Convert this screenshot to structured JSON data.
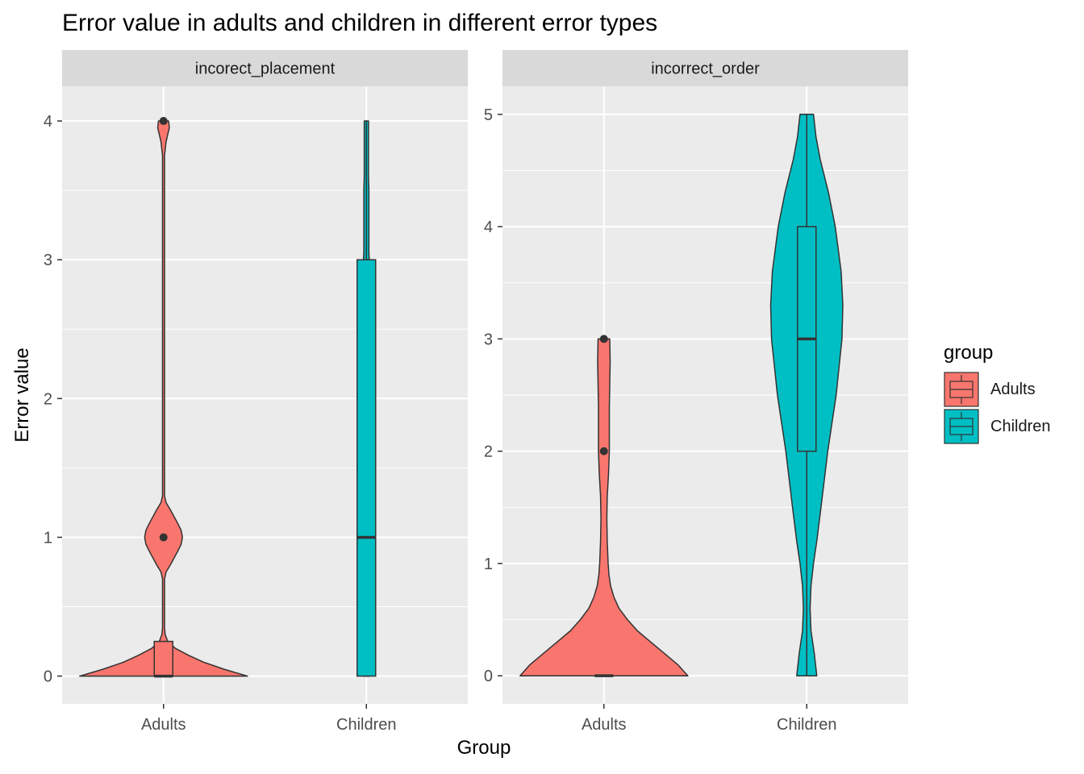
{
  "title": "Error value in adults and children in different error types",
  "chart_data": {
    "type": "violin",
    "title": "Error value in adults and children in different error types",
    "xlabel": "Group",
    "ylabel": "Error value",
    "legend": {
      "title": "group",
      "position": "right",
      "entries": [
        "Adults",
        "Children"
      ]
    },
    "colors": {
      "Adults": "#F8766D",
      "Children": "#00BFC4"
    },
    "grid": true,
    "panels": [
      {
        "strip": "incorect_placement",
        "categories": [
          "Adults",
          "Children"
        ],
        "ylim": [
          -0.2,
          4.25
        ],
        "yticks": [
          0,
          1,
          2,
          3,
          4
        ],
        "violins": [
          {
            "group": "Adults",
            "density": [
              [
                0,
                1.0
              ],
              [
                0.05,
                0.72
              ],
              [
                0.1,
                0.48
              ],
              [
                0.15,
                0.3
              ],
              [
                0.2,
                0.14
              ],
              [
                0.25,
                0.05
              ],
              [
                0.3,
                0.02
              ],
              [
                0.35,
                0.012
              ],
              [
                0.7,
                0.012
              ],
              [
                0.75,
                0.03
              ],
              [
                0.8,
                0.08
              ],
              [
                0.9,
                0.17
              ],
              [
                0.95,
                0.21
              ],
              [
                1.0,
                0.225
              ],
              [
                1.05,
                0.21
              ],
              [
                1.1,
                0.17
              ],
              [
                1.2,
                0.08
              ],
              [
                1.25,
                0.03
              ],
              [
                1.3,
                0.012
              ],
              [
                3.75,
                0.012
              ],
              [
                3.85,
                0.03
              ],
              [
                3.9,
                0.05
              ],
              [
                3.95,
                0.07
              ],
              [
                4.0,
                0.06
              ]
            ],
            "box": {
              "min": 0,
              "q1": 0,
              "median": 0,
              "q3": 0.25,
              "max": 0.25
            },
            "outliers": [
              1,
              4
            ]
          },
          {
            "group": "Children",
            "density": [
              [
                0,
                0.035
              ],
              [
                3.0,
                0.035
              ],
              [
                3.05,
                0.03
              ],
              [
                3.5,
                0.03
              ],
              [
                3.6,
                0.025
              ],
              [
                4.0,
                0.025
              ]
            ],
            "box": {
              "min": 0,
              "q1": 0,
              "median": 1,
              "q3": 3,
              "max": 4
            },
            "outliers": []
          }
        ]
      },
      {
        "strip": "incorrect_order",
        "categories": [
          "Adults",
          "Children"
        ],
        "ylim": [
          -0.25,
          5.25
        ],
        "yticks": [
          0,
          1,
          2,
          3,
          4,
          5
        ],
        "violins": [
          {
            "group": "Adults",
            "density": [
              [
                0,
                1.0
              ],
              [
                0.1,
                0.88
              ],
              [
                0.2,
                0.72
              ],
              [
                0.3,
                0.56
              ],
              [
                0.4,
                0.4
              ],
              [
                0.5,
                0.28
              ],
              [
                0.6,
                0.18
              ],
              [
                0.7,
                0.12
              ],
              [
                0.8,
                0.08
              ],
              [
                0.9,
                0.06
              ],
              [
                1.0,
                0.05
              ],
              [
                1.2,
                0.04
              ],
              [
                1.4,
                0.035
              ],
              [
                1.6,
                0.04
              ],
              [
                1.8,
                0.055
              ],
              [
                2.0,
                0.065
              ],
              [
                2.2,
                0.065
              ],
              [
                2.4,
                0.065
              ],
              [
                2.6,
                0.07
              ],
              [
                2.8,
                0.075
              ],
              [
                3.0,
                0.07
              ]
            ],
            "box": {
              "min": 0,
              "q1": 0,
              "median": 0,
              "q3": 0,
              "max": 0
            },
            "outliers": [
              2,
              3
            ]
          },
          {
            "group": "Children",
            "density": [
              [
                0,
                0.12
              ],
              [
                0.2,
                0.09
              ],
              [
                0.4,
                0.05
              ],
              [
                0.6,
                0.04
              ],
              [
                0.8,
                0.05
              ],
              [
                1.0,
                0.08
              ],
              [
                1.2,
                0.12
              ],
              [
                1.5,
                0.17
              ],
              [
                2.0,
                0.25
              ],
              [
                2.5,
                0.35
              ],
              [
                3.0,
                0.42
              ],
              [
                3.3,
                0.43
              ],
              [
                3.6,
                0.41
              ],
              [
                4.0,
                0.34
              ],
              [
                4.3,
                0.26
              ],
              [
                4.6,
                0.16
              ],
              [
                4.8,
                0.11
              ],
              [
                5.0,
                0.08
              ]
            ],
            "box": {
              "min": 0,
              "q1": 2,
              "median": 3,
              "q3": 4,
              "max": 5
            },
            "outliers": []
          }
        ]
      }
    ]
  }
}
